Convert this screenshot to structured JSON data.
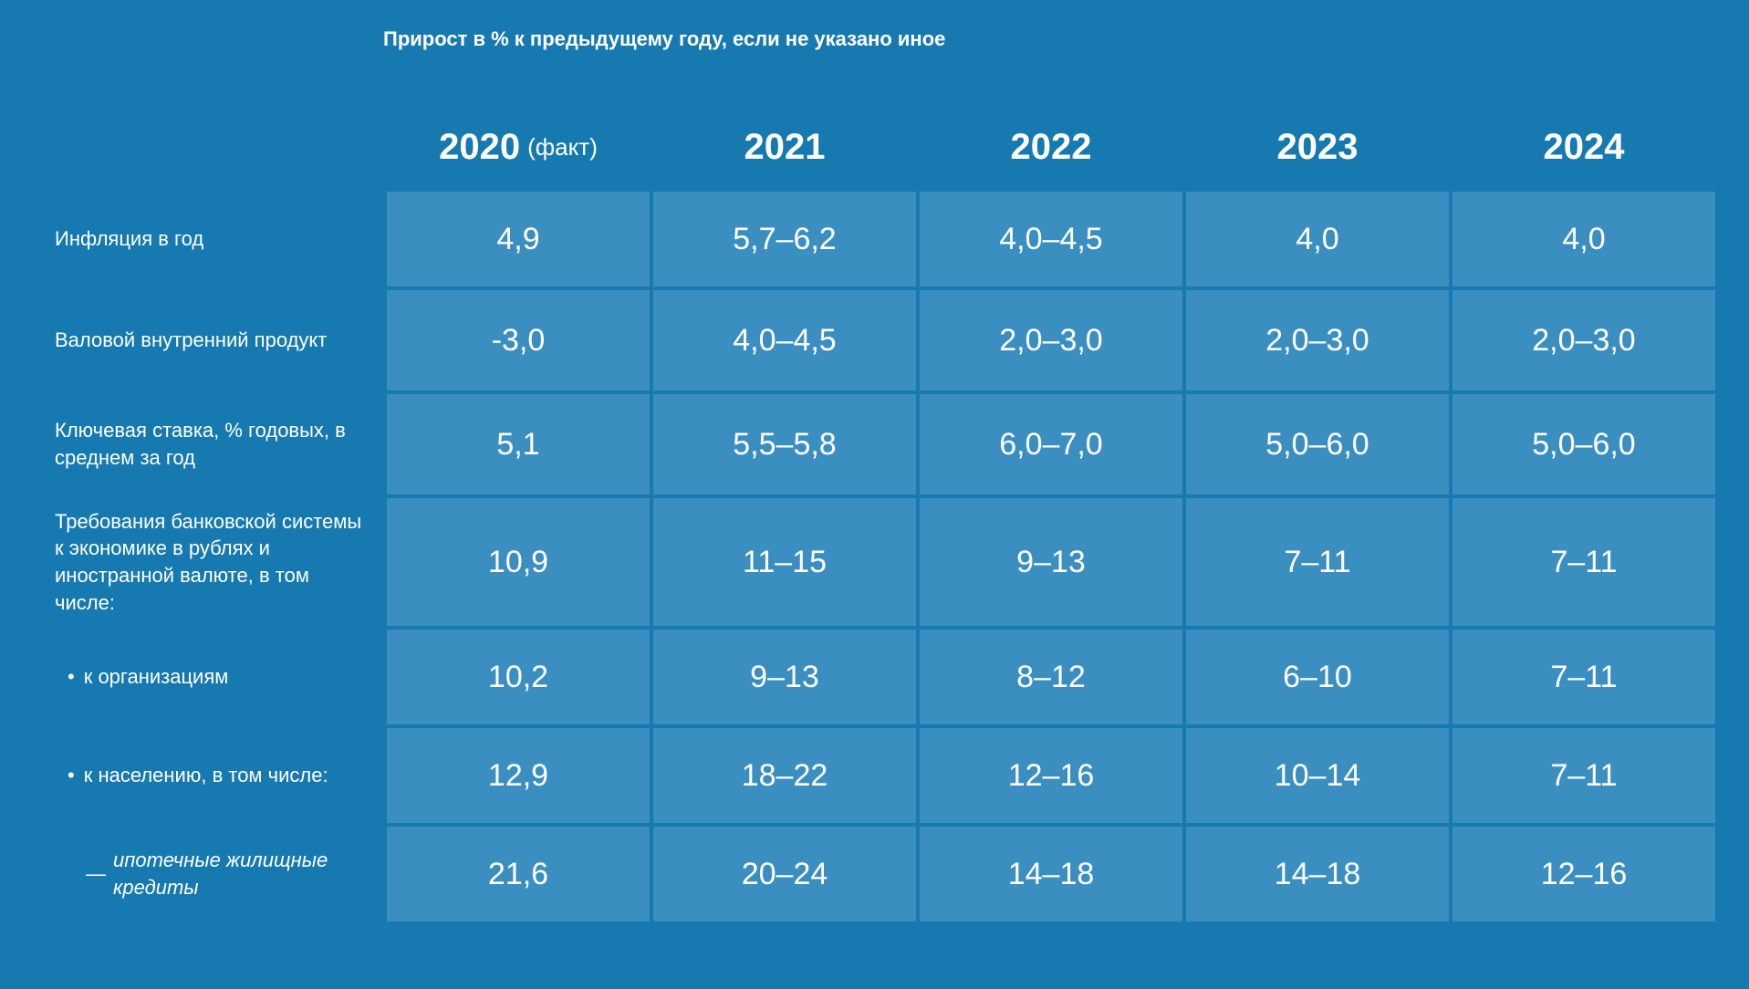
{
  "colors": {
    "background": "#1679af",
    "cell_background": "#3b8fc0",
    "text": "#ffffff"
  },
  "typography": {
    "subtitle_fontsize": 22,
    "header_fontsize": 40,
    "header_suffix_fontsize": 26,
    "row_label_fontsize": 22,
    "data_fontsize": 34
  },
  "layout": {
    "label_col_width": 360,
    "data_col_width": 288,
    "gap": 4
  },
  "subtitle": "Прирост в % к предыдущему году, если не указано иное",
  "columns": [
    {
      "year": "2020",
      "suffix": "(факт)"
    },
    {
      "year": "2021",
      "suffix": ""
    },
    {
      "year": "2022",
      "suffix": ""
    },
    {
      "year": "2023",
      "suffix": ""
    },
    {
      "year": "2024",
      "suffix": ""
    }
  ],
  "rows": [
    {
      "label": "Инфляция в год",
      "style": "plain",
      "height": "h-104",
      "values": [
        "4,9",
        "5,7–6,2",
        "4,0–4,5",
        "4,0",
        "4,0"
      ]
    },
    {
      "label": "Валовой внутренний продукт",
      "style": "plain",
      "height": "h-110",
      "values": [
        "-3,0",
        "4,0–4,5",
        "2,0–3,0",
        "2,0–3,0",
        "2,0–3,0"
      ]
    },
    {
      "label": "Ключевая ставка, % годовых, в среднем за год",
      "style": "plain",
      "height": "h-110",
      "values": [
        "5,1",
        "5,5–5,8",
        "6,0–7,0",
        "5,0–6,0",
        "5,0–6,0"
      ]
    },
    {
      "label": "Требования банковской системы к экономике в рублях и иностранной валюте, в том числе:",
      "style": "plain",
      "height": "h-140",
      "values": [
        "10,9",
        "11–15",
        "9–13",
        "7–11",
        "7–11"
      ]
    },
    {
      "label": "к организациям",
      "style": "bullet",
      "height": "h-104",
      "values": [
        "10,2",
        "9–13",
        "8–12",
        "6–10",
        "7–11"
      ]
    },
    {
      "label": "к населению, в том числе:",
      "style": "bullet",
      "height": "h-104",
      "values": [
        "12,9",
        "18–22",
        "12–16",
        "10–14",
        "7–11"
      ]
    },
    {
      "label": "ипотечные жилищные кредиты",
      "style": "dash",
      "height": "h-104",
      "values": [
        "21,6",
        "20–24",
        "14–18",
        "14–18",
        "12–16"
      ]
    }
  ]
}
